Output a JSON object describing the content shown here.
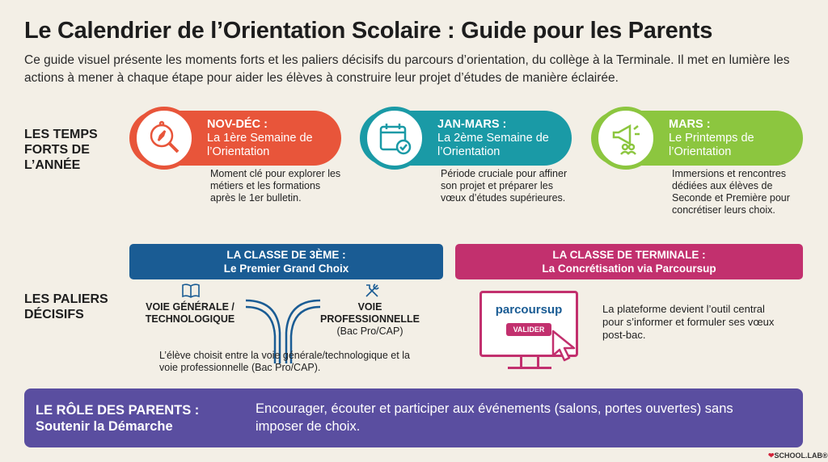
{
  "title": "Le Calendrier de l’Orientation Scolaire : Guide pour les Parents",
  "intro": "Ce guide visuel présente les moments forts et les paliers décisifs du parcours d’orientation, du collège à la Terminale. Il met en lumière les actions à mener à chaque étape pour aider les élèves à construire leur projet d’études de manière éclairée.",
  "temps_forts": {
    "label": "LES TEMPS FORTS DE L’ANNÉE",
    "items": [
      {
        "period": "NOV-DÉC :",
        "title": "La 1ère Semaine de l’Orientation",
        "desc": "Moment clé pour explorer les métiers et les formations après le 1er bulletin.",
        "icon": "compass-magnifier-icon",
        "color": "#e8553a"
      },
      {
        "period": "JAN-MARS :",
        "title": "La 2ème Semaine de l’Orientation",
        "desc": "Période cruciale pour affiner son projet et préparer les vœux d’études supérieures.",
        "icon": "calendar-check-icon",
        "color": "#1a9aa6"
      },
      {
        "period": "MARS :",
        "title": "Le Printemps de l’Orientation",
        "desc": "Immersions et rencontres dédiées aux élèves de Seconde et Première pour concrétiser leurs choix.",
        "icon": "megaphone-people-icon",
        "color": "#8cc63f"
      }
    ]
  },
  "paliers": {
    "label": "LES PALIERS DÉCISIFS",
    "troisieme": {
      "heading": "LA CLASSE DE 3ÈME :",
      "subheading": "Le Premier Grand Choix",
      "color": "#1a5c94",
      "voie_generale": "VOIE GÉNÉRALE / TECHNOLOGIQUE",
      "voie_pro": "VOIE PROFESSIONNELLE",
      "voie_pro_detail": "(Bac Pro/CAP)",
      "desc": "L’élève choisit entre la voie générale/technologique et la voie professionnelle (Bac Pro/CAP)."
    },
    "terminale": {
      "heading": "LA CLASSE DE TERMINALE :",
      "subheading": "La Concrétisation via Parcoursup",
      "color": "#c2306e",
      "logo": "parcoursup",
      "button": "VALIDER",
      "desc": "La plateforme devient l’outil central pour s’informer et formuler ses vœux post-bac."
    }
  },
  "parents": {
    "title": "LE RÔLE DES PARENTS :",
    "subtitle": "Soutenir la Démarche",
    "text": "Encourager, écouter et participer aux événements (salons, portes ouvertes) sans imposer de choix.",
    "color": "#5a4ea0"
  },
  "brand": "SCHOOL.LAB®"
}
